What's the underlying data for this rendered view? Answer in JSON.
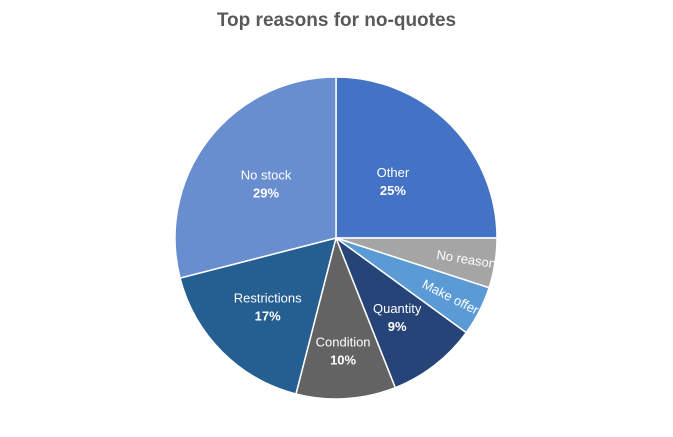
{
  "chart_data": {
    "type": "pie",
    "title": "Top reasons for no-quotes",
    "slices": [
      {
        "label": "Other",
        "value": 25,
        "value_label": "25%",
        "color": "#4472C4"
      },
      {
        "label": "No reason",
        "value": 5,
        "value_label": "",
        "color": "#A5A5A5"
      },
      {
        "label": "Make offer",
        "value": 5,
        "value_label": "",
        "color": "#5B9BD5"
      },
      {
        "label": "Quantity",
        "value": 9,
        "value_label": "9%",
        "color": "#264478"
      },
      {
        "label": "Condition",
        "value": 10,
        "value_label": "10%",
        "color": "#636363"
      },
      {
        "label": "Restrictions",
        "value": 17,
        "value_label": "17%",
        "color": "#255E91"
      },
      {
        "label": "No stock",
        "value": 29,
        "value_label": "29%",
        "color": "#698ED0"
      }
    ],
    "start_angle_deg": 0,
    "direction": "clockwise",
    "legend": "none"
  }
}
